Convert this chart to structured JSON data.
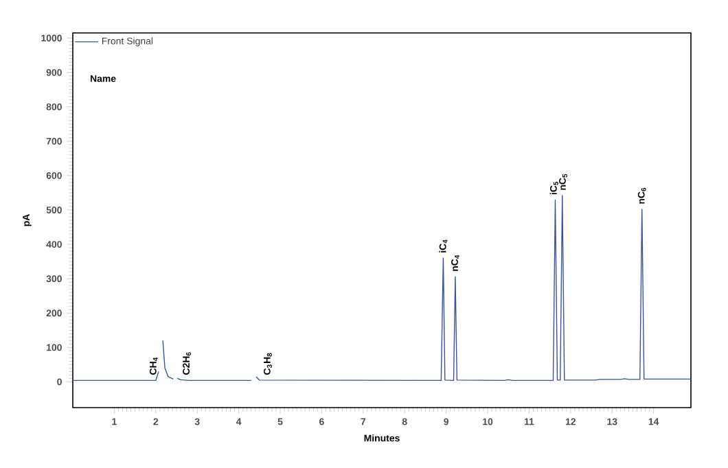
{
  "chart_data": {
    "type": "line",
    "xlabel": "Minutes",
    "ylabel": "pA",
    "legend": "top left",
    "marker": "none",
    "line_style": "solid",
    "grid": false,
    "xlim": [
      0,
      14.9
    ],
    "ylim": [
      -75,
      1015
    ],
    "xticks": [
      1,
      2,
      3,
      4,
      5,
      6,
      7,
      8,
      9,
      10,
      11,
      12,
      13,
      14
    ],
    "yticks": [
      0,
      100,
      200,
      300,
      400,
      500,
      600,
      700,
      800,
      900,
      1000
    ],
    "series": [
      {
        "name": "Front Signal",
        "color": "#3a4fa8",
        "x": [
          0,
          2.0,
          2.07,
          2.1,
          2.13,
          2.17,
          2.22,
          2.3,
          2.42,
          2.45,
          2.49,
          2.52,
          2.6,
          2.8,
          4.3,
          4.33,
          4.38,
          4.42,
          4.5,
          8.88,
          8.93,
          8.97,
          9.18,
          9.22,
          9.26,
          10.4,
          10.5,
          10.6,
          11.58,
          11.63,
          11.68,
          11.75,
          11.8,
          11.85,
          12.6,
          12.7,
          13.2,
          13.3,
          13.4,
          13.67,
          13.72,
          13.77,
          14.9
        ],
        "values": [
          4,
          4,
          30,
          null,
          null,
          120,
          40,
          15,
          8,
          null,
          null,
          10,
          6,
          4,
          4,
          null,
          null,
          15,
          5,
          4,
          360,
          5,
          4,
          306,
          5,
          4,
          6,
          4,
          4,
          529,
          5,
          5,
          542,
          5,
          5,
          7,
          7,
          9,
          7,
          7,
          502,
          8,
          8
        ]
      }
    ],
    "annotations": [
      "Name",
      {
        "text": "CH$_{4}$",
        "x": 1.95,
        "y": 15
      },
      {
        "text": "C2H$_{6}$",
        "x": 2.75,
        "y": 15
      },
      {
        "text": "C$_{3}$H$_{8}$",
        "x": 4.7,
        "y": 15
      },
      {
        "text": "iC$_{4}$",
        "x": 8.93,
        "y": 370
      },
      {
        "text": "nC$_{4}$",
        "x": 9.22,
        "y": 316
      },
      {
        "text": "iC$_{5}$",
        "x": 11.6,
        "y": 539
      },
      {
        "text": "nC$_{5}$",
        "x": 11.82,
        "y": 552
      },
      {
        "text": "nC$_{6}$",
        "x": 13.72,
        "y": 512
      }
    ]
  }
}
